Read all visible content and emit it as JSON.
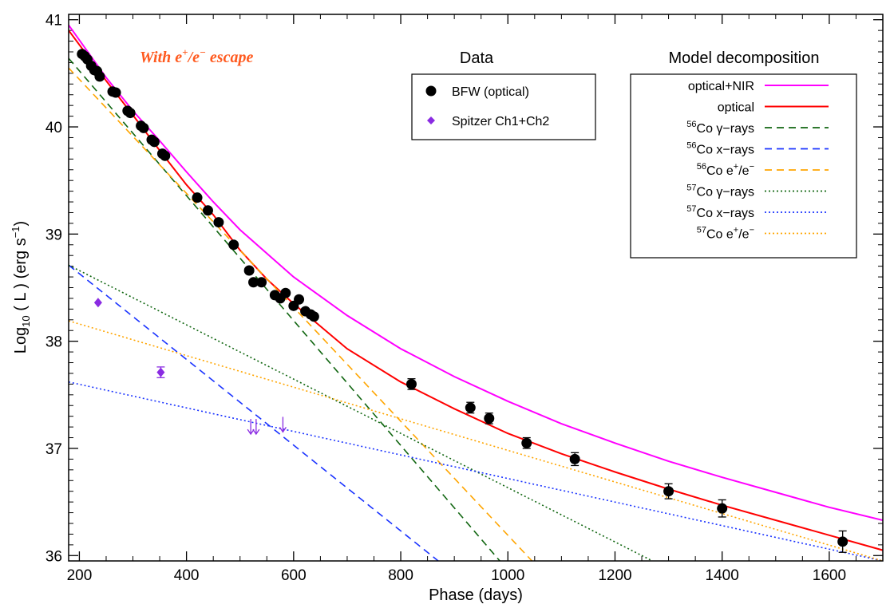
{
  "chart_data": {
    "type": "scatter",
    "xlabel": "Phase (days)",
    "ylabel_parts": {
      "base": "Log",
      "sub": "10",
      "mid": " ( L ) (erg s",
      "sup": "−1",
      "end": ")"
    },
    "xlim": [
      180,
      1700
    ],
    "ylim": [
      35.95,
      41.05
    ],
    "xticks": [
      200,
      400,
      600,
      800,
      1000,
      1200,
      1400,
      1600
    ],
    "yticks": [
      36,
      37,
      38,
      39,
      40,
      41
    ],
    "annotation": {
      "base": "With e",
      "sup1": "+",
      "mid": "/e",
      "sup2": "−",
      "end": " escape",
      "color": "#ff5a1f"
    },
    "data_legend_title": "Data",
    "model_legend_title": "Model decomposition",
    "data_series": [
      {
        "name": "BFW (optical)",
        "marker": "circle",
        "color": "#000000",
        "points": [
          [
            205,
            40.68
          ],
          [
            210,
            40.66
          ],
          [
            215,
            40.63
          ],
          [
            222,
            40.57
          ],
          [
            228,
            40.53
          ],
          [
            233,
            40.52
          ],
          [
            238,
            40.47
          ],
          [
            262,
            40.33
          ],
          [
            268,
            40.32
          ],
          [
            290,
            40.15
          ],
          [
            295,
            40.13
          ],
          [
            315,
            40.01
          ],
          [
            320,
            39.99
          ],
          [
            335,
            39.88
          ],
          [
            340,
            39.86
          ],
          [
            355,
            39.75
          ],
          [
            360,
            39.73
          ],
          [
            420,
            39.34
          ],
          [
            440,
            39.22
          ],
          [
            460,
            39.11
          ],
          [
            488,
            38.9
          ],
          [
            517,
            38.66
          ],
          [
            525,
            38.55
          ],
          [
            540,
            38.55
          ],
          [
            565,
            38.43
          ],
          [
            575,
            38.4
          ],
          [
            585,
            38.45
          ],
          [
            600,
            38.33
          ],
          [
            610,
            38.39
          ],
          [
            622,
            38.28
          ],
          [
            632,
            38.25
          ],
          [
            638,
            38.23
          ],
          [
            820,
            37.6
          ],
          [
            930,
            37.38
          ],
          [
            965,
            37.28
          ],
          [
            1035,
            37.05
          ],
          [
            1125,
            36.9
          ],
          [
            1300,
            36.6
          ],
          [
            1400,
            36.44
          ],
          [
            1625,
            36.13
          ]
        ],
        "errors": [
          [
            820,
            0.05
          ],
          [
            930,
            0.05
          ],
          [
            965,
            0.05
          ],
          [
            1035,
            0.05
          ],
          [
            1125,
            0.06
          ],
          [
            1300,
            0.07
          ],
          [
            1400,
            0.08
          ],
          [
            1625,
            0.1
          ]
        ]
      },
      {
        "name": "Spitzer Ch1+Ch2",
        "marker": "diamond",
        "color": "#8a2be2",
        "points": [
          [
            235,
            38.36
          ],
          [
            352,
            37.71
          ]
        ],
        "errors": [
          [
            352,
            0.05
          ]
        ],
        "upper_limits": [
          [
            520,
            37.2
          ],
          [
            530,
            37.2
          ],
          [
            580,
            37.22
          ]
        ]
      }
    ],
    "model_series": [
      {
        "name": "optical+NIR",
        "color": "#ff00ff",
        "dash": "solid",
        "x": [
          180,
          250,
          300,
          350,
          400,
          450,
          500,
          600,
          700,
          800,
          900,
          1000,
          1100,
          1200,
          1300,
          1400,
          1500,
          1600,
          1700
        ],
        "y": [
          40.95,
          40.46,
          40.15,
          39.87,
          39.58,
          39.3,
          39.04,
          38.6,
          38.24,
          37.93,
          37.67,
          37.44,
          37.23,
          37.05,
          36.88,
          36.73,
          36.59,
          36.45,
          36.33
        ]
      },
      {
        "name": "optical",
        "color": "#ff0000",
        "dash": "solid",
        "x": [
          180,
          250,
          300,
          350,
          400,
          450,
          500,
          550,
          600,
          700,
          800,
          900,
          1000,
          1100,
          1200,
          1300,
          1400,
          1500,
          1600,
          1700
        ],
        "y": [
          40.9,
          40.43,
          40.11,
          39.78,
          39.46,
          39.18,
          38.85,
          38.58,
          38.35,
          37.93,
          37.62,
          37.37,
          37.14,
          36.95,
          36.78,
          36.62,
          36.47,
          36.33,
          36.19,
          36.05
        ]
      },
      {
        "name": "56Co γ-rays",
        "color": "#116611",
        "dash": "dashed",
        "x": [
          180,
          985
        ],
        "y": [
          40.64,
          35.95
        ]
      },
      {
        "name": "56Co x-rays",
        "color": "#1a33ff",
        "dash": "dashed",
        "x": [
          180,
          870
        ],
        "y": [
          38.71,
          35.95
        ]
      },
      {
        "name": "56Co e+/e-",
        "color": "#ffa500",
        "dash": "dashed",
        "x": [
          180,
          1045
        ],
        "y": [
          40.55,
          35.95
        ]
      },
      {
        "name": "57Co γ-rays",
        "color": "#116611",
        "dash": "dotted",
        "x": [
          180,
          1270
        ],
        "y": [
          38.71,
          35.95
        ]
      },
      {
        "name": "57Co x-rays",
        "color": "#1a33ff",
        "dash": "dotted",
        "x": [
          180,
          1700
        ],
        "y": [
          37.62,
          35.95
        ]
      },
      {
        "name": "57Co e+/e-",
        "color": "#ffa500",
        "dash": "dotted",
        "x": [
          180,
          1700
        ],
        "y": [
          38.19,
          35.95
        ]
      }
    ],
    "legend_data_labels": [
      "BFW (optical)",
      "Spitzer Ch1+Ch2"
    ],
    "legend_model_labels": [
      {
        "sup": "",
        "text": "optical+NIR"
      },
      {
        "sup": "",
        "text": "optical"
      },
      {
        "sup": "56",
        "text": "Co γ−rays"
      },
      {
        "sup": "56",
        "text": "Co x−rays"
      },
      {
        "sup": "56",
        "text": "Co e",
        "sup2": "+",
        "tail": "/e",
        "sup3": "−"
      },
      {
        "sup": "57",
        "text": "Co γ−rays"
      },
      {
        "sup": "57",
        "text": "Co x−rays"
      },
      {
        "sup": "57",
        "text": "Co e",
        "sup2": "+",
        "tail": "/e",
        "sup3": "−"
      }
    ]
  }
}
